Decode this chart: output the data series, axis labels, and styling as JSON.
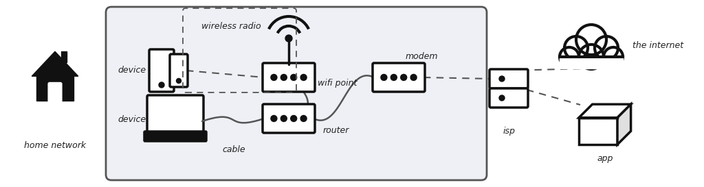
{
  "bg_color": "#ffffff",
  "home_box_bg": "#eef0f5",
  "home_box_border": "#333333",
  "device_color": "#111111",
  "line_color": "#555555",
  "dashed_color": "#555555",
  "font_family": "sans-serif",
  "font_style": "italic",
  "labels": {
    "home_network": "home network",
    "device1": "device",
    "device2": "device",
    "wireless_radio": "wireless radio",
    "wifi_point": "wifi point",
    "modem": "modem",
    "router": "router",
    "cable": "cable",
    "isp": "isp",
    "the_internet": "the internet",
    "app": "app"
  },
  "figsize": [
    10.24,
    2.73
  ],
  "dpi": 100
}
